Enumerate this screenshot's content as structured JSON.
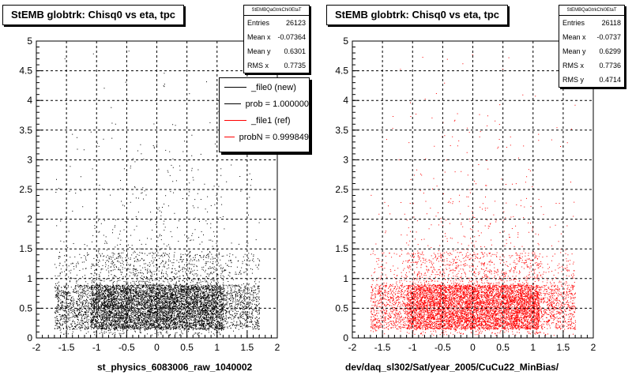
{
  "panels": [
    {
      "title": "StEMB globtrk: Chisq0 vs eta, tpc",
      "x_title": "st_physics_6083006_raw_1040002",
      "stats": {
        "header": "StEMBQaGtrkChi0EtaT",
        "rows": [
          {
            "label": "Entries",
            "value": "26123"
          },
          {
            "label": "Mean x",
            "value": "-0.07364"
          },
          {
            "label": "Mean y",
            "value": "0.6301"
          },
          {
            "label": "RMS x",
            "value": "0.7735"
          }
        ]
      },
      "point_color": "#000000"
    },
    {
      "title": "StEMB globtrk: Chisq0 vs eta, tpc",
      "x_title": "dev/daq_sl302/Sat/year_2005/CuCu22_MinBias/",
      "stats": {
        "header": "StEMBQaGtrkChi0EtaT",
        "rows": [
          {
            "label": "Entries",
            "value": "26118"
          },
          {
            "label": "Mean x",
            "value": "-0.0737"
          },
          {
            "label": "Mean y",
            "value": "0.6299"
          },
          {
            "label": "RMS x",
            "value": "0.7736"
          },
          {
            "label": "RMS y",
            "value": "0.4714"
          }
        ]
      },
      "point_color": "#ff0000"
    }
  ],
  "legend": [
    {
      "label": "_file0 (new)",
      "color": "#000000"
    },
    {
      "label": "prob = 1.000000",
      "color": "#000000"
    },
    {
      "label": "_file1 (ref)",
      "color": "#ff0000"
    },
    {
      "label": "probN = 0.999849",
      "color": "#ff0000"
    }
  ],
  "chart_data": [
    {
      "type": "scatter",
      "title": "StEMB globtrk: Chisq0 vs eta, tpc",
      "xlabel": "st_physics_6083006_raw_1040002",
      "ylabel": "",
      "xlim": [
        -2,
        2
      ],
      "ylim": [
        0,
        5
      ],
      "x_ticks": [
        "-2",
        "-1.5",
        "-1",
        "-0.5",
        "0",
        "0.5",
        "1",
        "1.5",
        "2"
      ],
      "y_ticks": [
        "0",
        "0.5",
        "1",
        "1.5",
        "2",
        "2.5",
        "3",
        "3.5",
        "4",
        "4.5",
        "5"
      ],
      "grid": true,
      "density_summary": {
        "x_mean": -0.07364,
        "y_mean": 0.6301,
        "x_rms": 0.7735,
        "entries": 26123
      },
      "series": [
        {
          "name": "_file0 (new)",
          "color": "#000000"
        }
      ]
    },
    {
      "type": "scatter",
      "title": "StEMB globtrk: Chisq0 vs eta, tpc",
      "xlabel": "dev/daq_sl302/Sat/year_2005/CuCu22_MinBias/",
      "ylabel": "",
      "xlim": [
        -2,
        2
      ],
      "ylim": [
        0,
        5
      ],
      "x_ticks": [
        "-2",
        "-1.5",
        "-1",
        "-0.5",
        "0",
        "0.5",
        "1",
        "1.5",
        "2"
      ],
      "y_ticks": [
        "0",
        "0.5",
        "1",
        "1.5",
        "2",
        "2.5",
        "3",
        "3.5",
        "4",
        "4.5",
        "5"
      ],
      "grid": true,
      "density_summary": {
        "x_mean": -0.0737,
        "y_mean": 0.6299,
        "x_rms": 0.7736,
        "y_rms": 0.4714,
        "entries": 26118
      },
      "series": [
        {
          "name": "_file1 (ref)",
          "color": "#ff0000"
        }
      ]
    }
  ]
}
